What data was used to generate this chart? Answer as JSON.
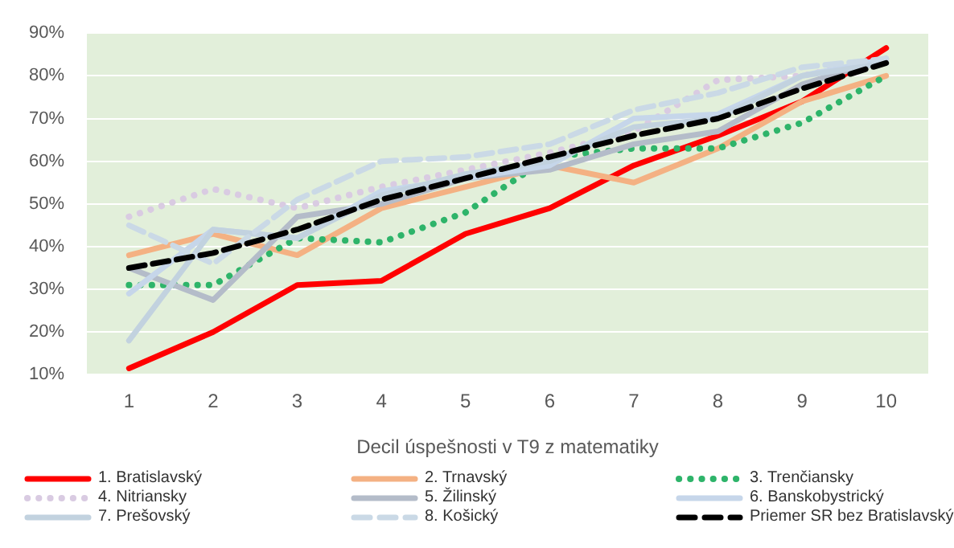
{
  "chart_data": {
    "type": "line",
    "xlabel": "Decil úspešnosti v T9 z matematiky",
    "categories": [
      "1",
      "2",
      "3",
      "4",
      "5",
      "6",
      "7",
      "8",
      "9",
      "10"
    ],
    "ylim": [
      10,
      90
    ],
    "yticks": [
      {
        "value": 10,
        "label": "10%"
      },
      {
        "value": 20,
        "label": "20%"
      },
      {
        "value": 30,
        "label": "30%"
      },
      {
        "value": 40,
        "label": "40%"
      },
      {
        "value": 50,
        "label": "50%"
      },
      {
        "value": 60,
        "label": "60%"
      },
      {
        "value": 70,
        "label": "70%"
      },
      {
        "value": 80,
        "label": "80%"
      },
      {
        "value": 90,
        "label": "90%"
      }
    ],
    "grid": "y",
    "legend": "bottom",
    "marker": "none",
    "series": [
      {
        "name": "1. Bratislavský",
        "color": "#ff0000",
        "line_style": "solid",
        "values": [
          11.5,
          20,
          31,
          32,
          43,
          49,
          59,
          66,
          74,
          86.5
        ]
      },
      {
        "name": "2. Trnavský",
        "color": "#f4b183",
        "line_style": "solid",
        "values": [
          38,
          43,
          38,
          49,
          54,
          59,
          55,
          63,
          74,
          80
        ]
      },
      {
        "name": "3. Trenčiansky",
        "color": "#2eb46a",
        "line_style": "dotted",
        "values": [
          31,
          31,
          42,
          41,
          48,
          61,
          63,
          63,
          69,
          80
        ]
      },
      {
        "name": "4. Nitriansky",
        "color": "#d9cbe2",
        "line_style": "dotted",
        "values": [
          47,
          53.5,
          49,
          54,
          58,
          62,
          67,
          79,
          80,
          84
        ]
      },
      {
        "name": "5. Žilinský",
        "color": "#b4bcc9",
        "line_style": "solid",
        "values": [
          35,
          27.5,
          47,
          50,
          56,
          58,
          64,
          67,
          78,
          84
        ]
      },
      {
        "name": "6. Banskobystrický",
        "color": "#c6d6ea",
        "line_style": "solid",
        "values": [
          29,
          44,
          42,
          53,
          56,
          59,
          70,
          71,
          80,
          84
        ]
      },
      {
        "name": "7. Prešovský",
        "color": "#c2d2df",
        "line_style": "solid",
        "values": [
          18,
          44,
          42,
          52,
          57,
          60,
          68,
          70,
          80,
          83
        ]
      },
      {
        "name": "8. Košický",
        "color": "#cad9e6",
        "line_style": "dashed",
        "values": [
          45,
          36,
          51,
          60,
          61,
          64,
          72,
          76,
          82,
          84
        ]
      },
      {
        "name": "Priemer SR bez Bratislavský",
        "color": "#000000",
        "line_style": "dashed",
        "values": [
          35,
          38.5,
          44,
          51,
          56,
          61,
          66,
          70,
          77,
          83
        ]
      }
    ]
  }
}
